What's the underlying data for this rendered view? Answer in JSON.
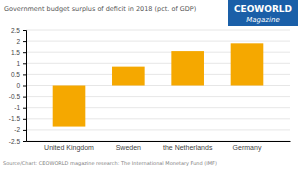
{
  "chart_data": {
    "type": "bar",
    "title": "Government budget surplus of deficit in 2018 (pct. of GDP)",
    "categories": [
      "United Kingdom",
      "Sweden",
      "the Netherlands",
      "Germany"
    ],
    "values": [
      -1.85,
      0.85,
      1.55,
      1.9
    ],
    "color": "#F5A800",
    "ylim": [
      -2.5,
      2.5
    ],
    "yticks": [
      -2.5,
      -2,
      -1.5,
      -1,
      -0.5,
      0,
      0.5,
      1,
      1.5,
      2,
      2.5
    ],
    "grid": true,
    "annotations": [
      "Source/Chart: CEOWORLD magazine research: The International Monetary Fund (IMF)",
      "CEOWORLD",
      "Magazine"
    ]
  }
}
